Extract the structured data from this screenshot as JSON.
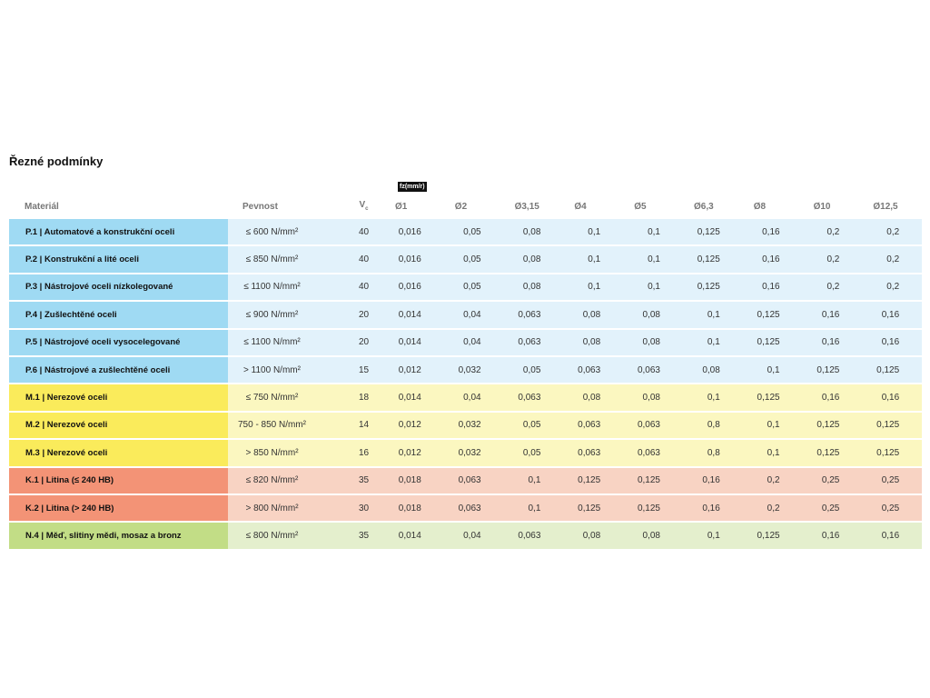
{
  "section_title": "Řezné podmínky",
  "fz_label": "fz(mm/r)",
  "headers": {
    "material": "Materiál",
    "strength": "Pevnost",
    "vc": "V",
    "vc_sub": "c",
    "diameters": [
      "Ø1",
      "Ø2",
      "Ø3,15",
      "Ø4",
      "Ø5",
      "Ø6,3",
      "Ø8",
      "Ø10",
      "Ø12,5"
    ]
  },
  "rows": [
    {
      "group": "p",
      "material": "P.1 | Automatové a konstrukční oceli",
      "strength": "≤ 600 N/mm²",
      "vc": "40",
      "fz": [
        "0,016",
        "0,05",
        "0,08",
        "0,1",
        "0,1",
        "0,125",
        "0,16",
        "0,2",
        "0,2"
      ]
    },
    {
      "group": "p",
      "material": "P.2 | Konstrukční a lité oceli",
      "strength": "≤ 850 N/mm²",
      "vc": "40",
      "fz": [
        "0,016",
        "0,05",
        "0,08",
        "0,1",
        "0,1",
        "0,125",
        "0,16",
        "0,2",
        "0,2"
      ]
    },
    {
      "group": "p",
      "material": "P.3 | Nástrojové oceli nízkolegované",
      "strength": "≤ 1100 N/mm²",
      "vc": "40",
      "fz": [
        "0,016",
        "0,05",
        "0,08",
        "0,1",
        "0,1",
        "0,125",
        "0,16",
        "0,2",
        "0,2"
      ]
    },
    {
      "group": "p",
      "material": "P.4 | Zušlechtěné oceli",
      "strength": "≤ 900 N/mm²",
      "vc": "20",
      "fz": [
        "0,014",
        "0,04",
        "0,063",
        "0,08",
        "0,08",
        "0,1",
        "0,125",
        "0,16",
        "0,16"
      ]
    },
    {
      "group": "p",
      "material": "P.5 | Nástrojové oceli vysocelegované",
      "strength": "≤ 1100 N/mm²",
      "vc": "20",
      "fz": [
        "0,014",
        "0,04",
        "0,063",
        "0,08",
        "0,08",
        "0,1",
        "0,125",
        "0,16",
        "0,16"
      ]
    },
    {
      "group": "p",
      "material": "P.6 | Nástrojové a zušlechtěné oceli",
      "strength": "> 1100 N/mm²",
      "vc": "15",
      "fz": [
        "0,012",
        "0,032",
        "0,05",
        "0,063",
        "0,063",
        "0,08",
        "0,1",
        "0,125",
        "0,125"
      ]
    },
    {
      "group": "m",
      "material": "M.1 | Nerezové oceli",
      "strength": "≤ 750 N/mm²",
      "vc": "18",
      "fz": [
        "0,014",
        "0,04",
        "0,063",
        "0,08",
        "0,08",
        "0,1",
        "0,125",
        "0,16",
        "0,16"
      ]
    },
    {
      "group": "m",
      "material": "M.2 | Nerezové oceli",
      "strength": "750 - 850 N/mm²",
      "vc": "14",
      "fz": [
        "0,012",
        "0,032",
        "0,05",
        "0,063",
        "0,063",
        "0,8",
        "0,1",
        "0,125",
        "0,125"
      ]
    },
    {
      "group": "m",
      "material": "M.3 | Nerezové oceli",
      "strength": "> 850 N/mm²",
      "vc": "16",
      "fz": [
        "0,012",
        "0,032",
        "0,05",
        "0,063",
        "0,063",
        "0,8",
        "0,1",
        "0,125",
        "0,125"
      ]
    },
    {
      "group": "k",
      "material": "K.1 | Litina (≤ 240 HB)",
      "strength": "≤ 820 N/mm²",
      "vc": "35",
      "fz": [
        "0,018",
        "0,063",
        "0,1",
        "0,125",
        "0,125",
        "0,16",
        "0,2",
        "0,25",
        "0,25"
      ]
    },
    {
      "group": "k",
      "material": "K.2 | Litina (> 240 HB)",
      "strength": "> 800 N/mm²",
      "vc": "30",
      "fz": [
        "0,018",
        "0,063",
        "0,1",
        "0,125",
        "0,125",
        "0,16",
        "0,2",
        "0,25",
        "0,25"
      ]
    },
    {
      "group": "n",
      "material": "N.4 | Měď, slitiny mědi, mosaz a bronz",
      "strength": "≤ 800 N/mm²",
      "vc": "35",
      "fz": [
        "0,014",
        "0,04",
        "0,063",
        "0,08",
        "0,08",
        "0,1",
        "0,125",
        "0,16",
        "0,16"
      ]
    }
  ],
  "colors": {
    "p_label": "#9fdaf3",
    "p_row": "#e2f2fb",
    "m_label": "#faeb5b",
    "m_row": "#fbf7c0",
    "k_label": "#f39376",
    "k_row": "#f8d3c3",
    "n_label": "#c2dd86",
    "n_row": "#e4efcd"
  }
}
